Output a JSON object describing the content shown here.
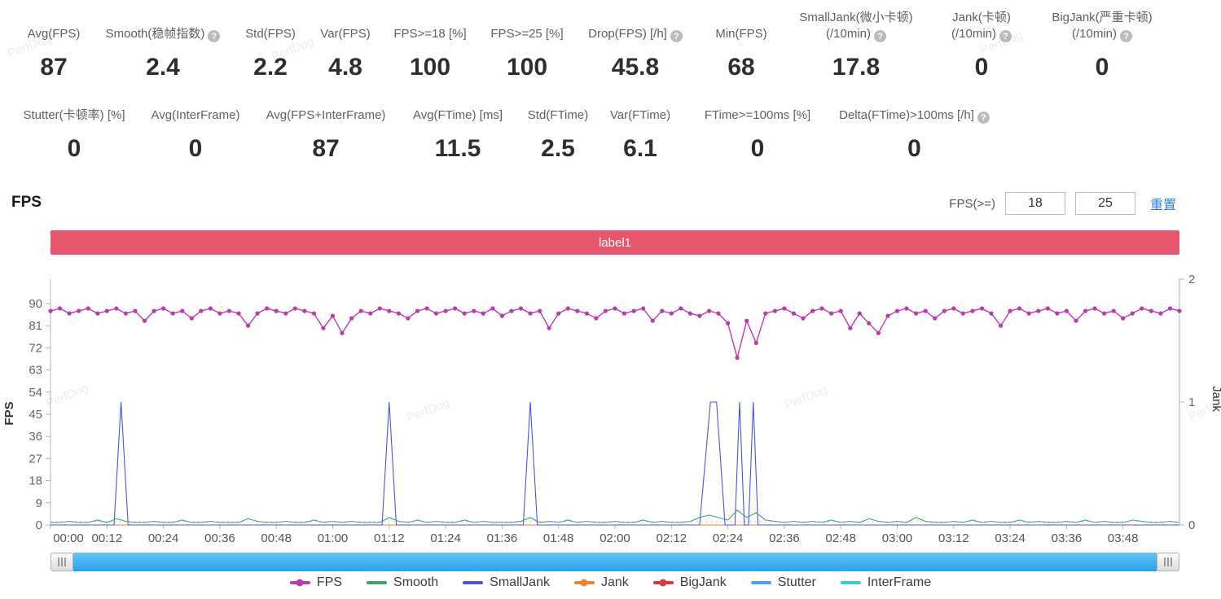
{
  "watermark": "PerfDog",
  "metrics": {
    "row1": [
      {
        "label_lines": [
          "Avg(FPS)"
        ],
        "value": "87",
        "help": false
      },
      {
        "label_lines": [
          "Smooth(稳帧指数)"
        ],
        "value": "2.4",
        "help": true
      },
      {
        "label_lines": [
          "Std(FPS)"
        ],
        "value": "2.2",
        "help": false
      },
      {
        "label_lines": [
          "Var(FPS)"
        ],
        "value": "4.8",
        "help": false
      },
      {
        "label_lines": [
          "FPS>=18 [%]"
        ],
        "value": "100",
        "help": false
      },
      {
        "label_lines": [
          "FPS>=25 [%]"
        ],
        "value": "100",
        "help": false
      },
      {
        "label_lines": [
          "Drop(FPS) [/h]"
        ],
        "value": "45.8",
        "help": true
      },
      {
        "label_lines": [
          "Min(FPS)"
        ],
        "value": "68",
        "help": false
      },
      {
        "label_lines": [
          "SmallJank(微小卡顿)",
          "(/10min)"
        ],
        "value": "17.8",
        "help": true
      },
      {
        "label_lines": [
          "Jank(卡顿)",
          "(/10min)"
        ],
        "value": "0",
        "help": true
      },
      {
        "label_lines": [
          "BigJank(严重卡顿)",
          "(/10min)"
        ],
        "value": "0",
        "help": true
      }
    ],
    "row2": [
      {
        "label_lines": [
          "Stutter(卡顿率) [%]"
        ],
        "value": "0",
        "help": false
      },
      {
        "label_lines": [
          "Avg(InterFrame)"
        ],
        "value": "0",
        "help": false
      },
      {
        "label_lines": [
          "Avg(FPS+InterFrame)"
        ],
        "value": "87",
        "help": false
      },
      {
        "label_lines": [
          "Avg(FTime) [ms]"
        ],
        "value": "11.5",
        "help": false
      },
      {
        "label_lines": [
          "Std(FTime)"
        ],
        "value": "2.5",
        "help": false
      },
      {
        "label_lines": [
          "Var(FTime)"
        ],
        "value": "6.1",
        "help": false
      },
      {
        "label_lines": [
          "FTime>=100ms [%]"
        ],
        "value": "0",
        "help": false
      },
      {
        "label_lines": [
          "Delta(FTime)>100ms [/h]"
        ],
        "value": "0",
        "help": true
      }
    ]
  },
  "section": {
    "title": "FPS",
    "threshold_label": "FPS(>=)",
    "threshold_low": "18",
    "threshold_high": "25",
    "reset_label": "重置"
  },
  "banner": {
    "label": "label1",
    "color": "#e7566c"
  },
  "chart_data": {
    "type": "line",
    "x_unit": "time (mm:ss)",
    "x_range": [
      0,
      240
    ],
    "x_tick_interval_seconds": 12,
    "x_tick_labels": [
      "00:00",
      "00:12",
      "00:24",
      "00:36",
      "00:48",
      "01:00",
      "01:12",
      "01:24",
      "01:36",
      "01:48",
      "02:00",
      "02:12",
      "02:24",
      "02:36",
      "02:48",
      "03:00",
      "03:12",
      "03:24",
      "03:36",
      "03:48"
    ],
    "y_left": {
      "label": "FPS",
      "min": 0,
      "max": 90,
      "tick_step": 9
    },
    "y_right": {
      "label": "Jank",
      "min": 0,
      "max": 2,
      "ticks": [
        0,
        1,
        2
      ]
    },
    "grid": false,
    "legend_position": "bottom",
    "series": [
      {
        "name": "FPS",
        "color": "#ba3ab0",
        "axis": "left",
        "marker": true,
        "step": 2,
        "values": [
          87,
          88,
          86,
          87,
          88,
          86,
          87,
          88,
          86,
          87,
          83,
          87,
          88,
          86,
          87,
          84,
          87,
          88,
          86,
          87,
          86,
          81,
          86,
          88,
          87,
          86,
          88,
          87,
          86,
          80,
          85,
          78,
          84,
          87,
          86,
          88,
          87,
          86,
          84,
          87,
          88,
          86,
          87,
          88,
          86,
          87,
          86,
          88,
          85,
          87,
          88,
          86,
          87,
          80,
          86,
          88,
          87,
          86,
          84,
          87,
          88,
          86,
          87,
          88,
          83,
          87,
          86,
          88,
          86,
          85,
          87,
          86,
          82,
          68,
          83,
          74,
          86,
          87,
          88,
          86,
          84,
          87,
          88,
          86,
          87,
          80,
          86,
          82,
          78,
          85,
          87,
          88,
          86,
          87,
          84,
          87,
          88,
          86,
          87,
          88,
          86,
          81,
          87,
          88,
          86,
          87,
          88,
          86,
          87,
          83,
          87,
          88,
          86,
          87,
          84,
          86,
          88,
          87,
          86,
          88,
          87
        ]
      },
      {
        "name": "Smooth",
        "color": "#3fa463",
        "axis": "left",
        "marker": false,
        "step": 2,
        "values": [
          1,
          1,
          1.5,
          1,
          1,
          2,
          1,
          2.5,
          1.5,
          1,
          1,
          1.5,
          1,
          1,
          2,
          1,
          1,
          1.5,
          1,
          1,
          1,
          2.5,
          1.5,
          1,
          1,
          1.5,
          1,
          1,
          2,
          1,
          1.5,
          1,
          1.5,
          1,
          1,
          1,
          3,
          1.5,
          1,
          2,
          1,
          1.5,
          1,
          1,
          2,
          1,
          1.5,
          1,
          1,
          1,
          1.5,
          3,
          1,
          1.5,
          1,
          2,
          1,
          1.5,
          1,
          1,
          1.5,
          1,
          1,
          2,
          1,
          1.5,
          1,
          1,
          1.5,
          3,
          4,
          3,
          2,
          6,
          3,
          5,
          2,
          1.5,
          1,
          1.5,
          1,
          1.5,
          1,
          2,
          1,
          1.5,
          1,
          2.5,
          1.5,
          1,
          1.5,
          1,
          3,
          1.5,
          1,
          1,
          1.5,
          1,
          2,
          1,
          1.5,
          1,
          1,
          2,
          1,
          1.5,
          1,
          1,
          1.5,
          1,
          2,
          1,
          1.5,
          1,
          1,
          2,
          1.5,
          1,
          1,
          1.5,
          1
        ]
      },
      {
        "name": "SmallJank",
        "color": "#5051db",
        "axis": "right",
        "marker": false,
        "points": [
          [
            0,
            0
          ],
          [
            13.5,
            0
          ],
          [
            15,
            1
          ],
          [
            16.5,
            0
          ],
          [
            70.5,
            0
          ],
          [
            72,
            1
          ],
          [
            73.5,
            0
          ],
          [
            100.5,
            0
          ],
          [
            102,
            1
          ],
          [
            103.5,
            0
          ],
          [
            138,
            0
          ],
          [
            140.3,
            1
          ],
          [
            141.6,
            1
          ],
          [
            143.4,
            0
          ],
          [
            145.5,
            0
          ],
          [
            146.5,
            1
          ],
          [
            147.5,
            0
          ],
          [
            148.4,
            0
          ],
          [
            149.4,
            1
          ],
          [
            150.4,
            0
          ],
          [
            240,
            0
          ]
        ]
      },
      {
        "name": "Jank",
        "color": "#ef8432",
        "axis": "right",
        "marker": true,
        "points": [
          [
            0,
            0
          ],
          [
            240,
            0
          ]
        ]
      },
      {
        "name": "BigJank",
        "color": "#d43a3e",
        "axis": "right",
        "marker": true,
        "points": [
          [
            0,
            0
          ],
          [
            240,
            0
          ]
        ]
      },
      {
        "name": "Stutter",
        "color": "#4d9fe8",
        "axis": "left",
        "marker": false,
        "points": [
          [
            0,
            0
          ],
          [
            240,
            0
          ]
        ]
      },
      {
        "name": "InterFrame",
        "color": "#3ecbd6",
        "axis": "left",
        "marker": false,
        "points": [
          [
            0,
            0
          ],
          [
            240,
            0
          ]
        ]
      }
    ]
  }
}
